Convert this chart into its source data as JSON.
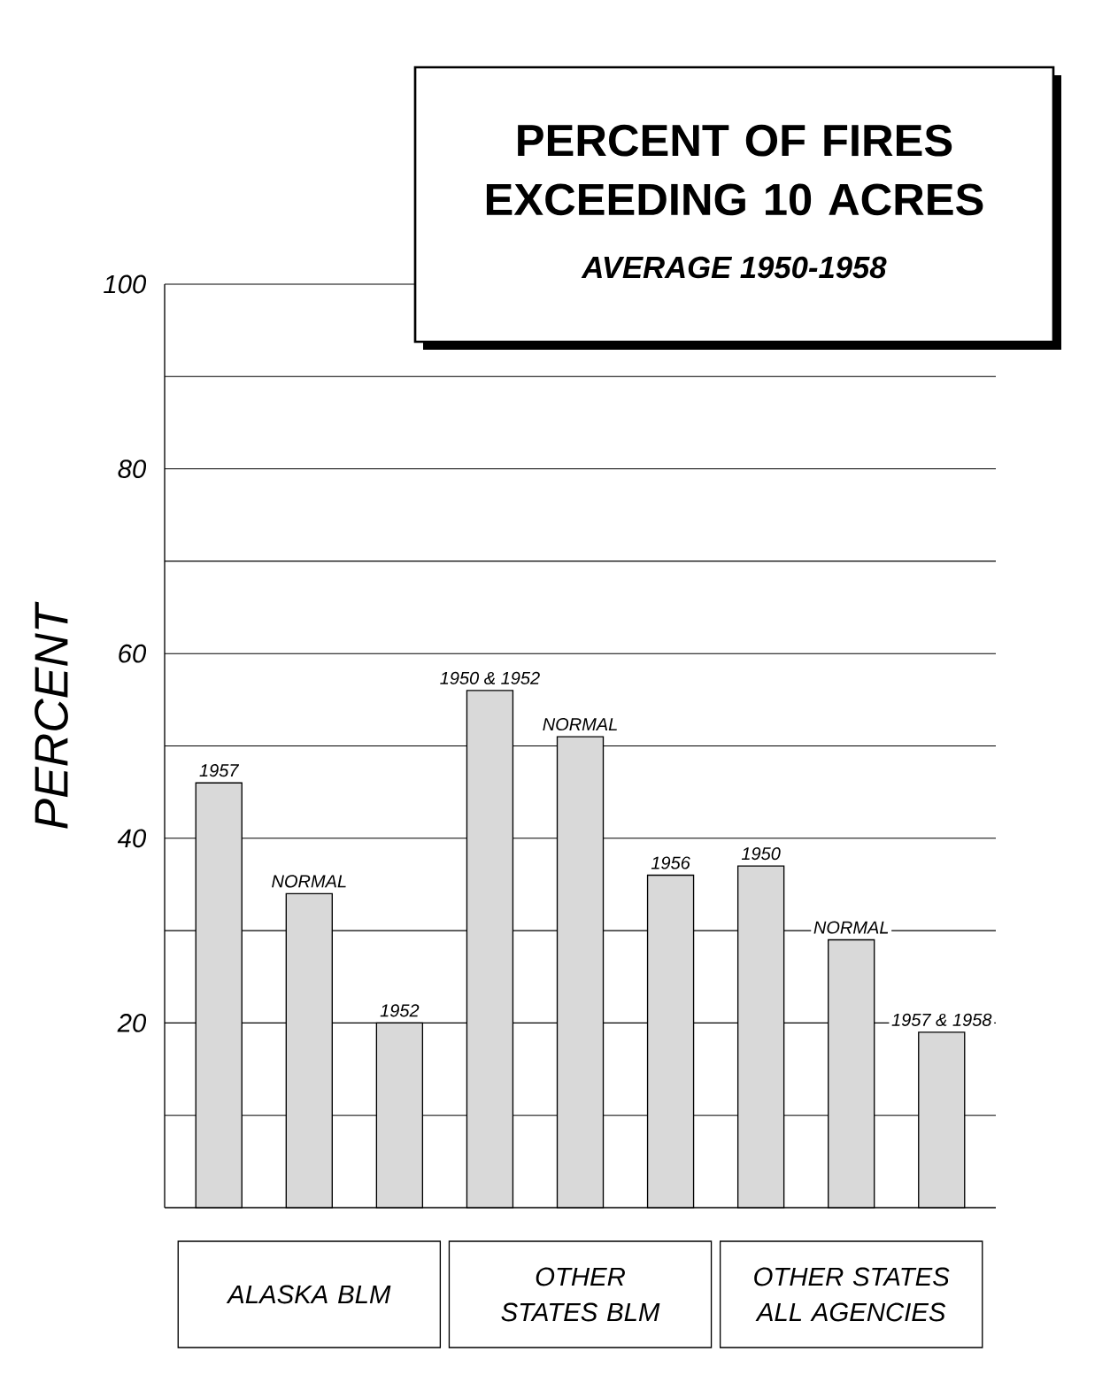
{
  "chart_data": {
    "type": "bar",
    "title": "PERCENT OF FIRES EXCEEDING 10 ACRES",
    "subtitle": "AVERAGE 1950-1958",
    "ylabel": "PERCENT",
    "categories": [
      "1957",
      "NORMAL",
      "1952",
      "1950 & 1952",
      "NORMAL",
      "1956",
      "1950",
      "NORMAL",
      "1957 & 1958"
    ],
    "values": [
      46,
      34,
      20,
      56,
      51,
      36,
      37,
      29,
      19
    ],
    "color": "#d9d9d9",
    "ylim": [
      0,
      100
    ],
    "yticks": [
      {
        "value": 10,
        "label": null
      },
      20,
      {
        "value": 30,
        "label": null
      },
      40,
      {
        "value": 50,
        "label": null
      },
      60,
      {
        "value": 70,
        "label": null
      },
      80,
      {
        "value": 90,
        "label": null
      },
      100
    ],
    "grid": "y",
    "annotations": [
      "ALASKA BLM",
      "OTHER STATES BLM",
      "OTHER STATES ALL AGENCIES"
    ]
  }
}
